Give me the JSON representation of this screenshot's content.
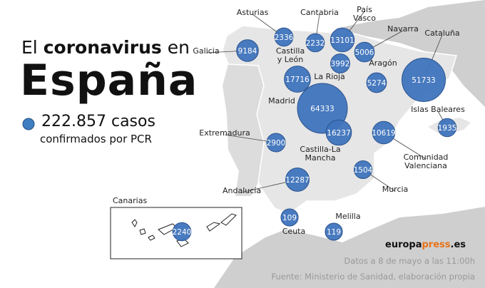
{
  "header": {
    "title_prefix": "El",
    "title_bold": "coronavirus",
    "title_suffix": "en",
    "title_main": "España",
    "total": "222.857 casos",
    "total_caption": "confirmados por PCR"
  },
  "inset_label": "Canarias",
  "regions": [
    {
      "name": "Galicia",
      "value": 9184
    },
    {
      "name": "Asturias",
      "value": 2336
    },
    {
      "name": "Cantabria",
      "value": 2232
    },
    {
      "name": "País Vasco",
      "value": 13101
    },
    {
      "name": "Navarra",
      "value": 5006
    },
    {
      "name": "Cataluña",
      "value": 51733
    },
    {
      "name": "Aragón",
      "value": 5274
    },
    {
      "name": "La Rioja",
      "value": 3992
    },
    {
      "name": "Castilla y León",
      "value": 17716
    },
    {
      "name": "Madrid",
      "value": 64333
    },
    {
      "name": "Castilla-La Mancha",
      "value": 16237
    },
    {
      "name": "Extremadura",
      "value": 2900
    },
    {
      "name": "Comunidad Valenciana",
      "value": 10619
    },
    {
      "name": "Islas Baleares",
      "value": 1935
    },
    {
      "name": "Murcia",
      "value": 1504
    },
    {
      "name": "Andalucía",
      "value": 12287
    },
    {
      "name": "Ceuta",
      "value": 109
    },
    {
      "name": "Melilla",
      "value": 119
    },
    {
      "name": "Canarias",
      "value": 2240
    }
  ],
  "footer": {
    "brand_a": "europa",
    "brand_b": "press",
    "brand_c": ".es",
    "date": "Datos a 8 de mayo a las 11:00h",
    "source": "Fuente: Ministerio de Sanidad, elaboración propia"
  }
}
